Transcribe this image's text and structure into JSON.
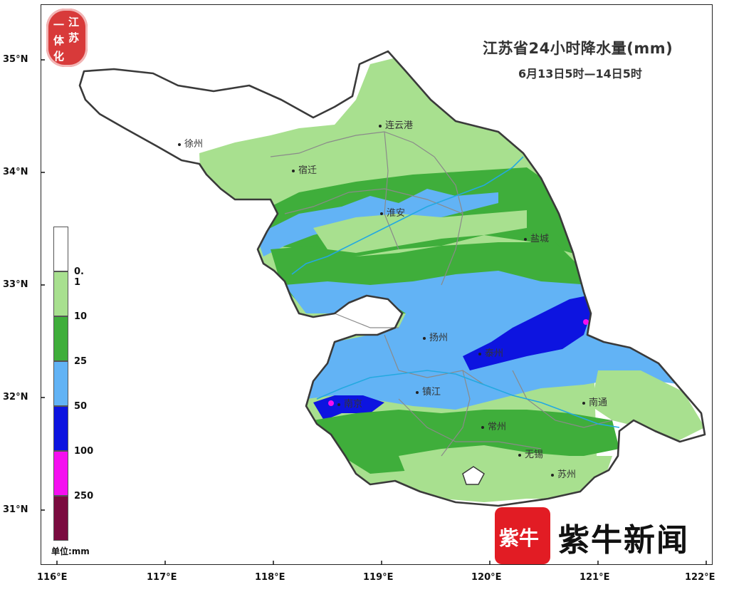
{
  "map": {
    "title": "江苏省24小时降水量(mm)",
    "subtitle": "6月13日5时—14日5时",
    "latitude_labels": [
      "35°N",
      "34°N",
      "33°N",
      "32°N",
      "31°N"
    ],
    "longitude_labels": [
      "116°E",
      "117°E",
      "118°E",
      "119°E",
      "120°E",
      "121°E",
      "122°E"
    ],
    "cities": [
      {
        "name": "徐州"
      },
      {
        "name": "连云港"
      },
      {
        "name": "宿迁"
      },
      {
        "name": "淮安"
      },
      {
        "name": "盐城"
      },
      {
        "name": "扬州"
      },
      {
        "name": "泰州"
      },
      {
        "name": "镇江"
      },
      {
        "name": "南京"
      },
      {
        "name": "南通"
      },
      {
        "name": "常州"
      },
      {
        "name": "无锡"
      },
      {
        "name": "苏州"
      }
    ]
  },
  "legend": {
    "unit": "单位:mm",
    "levels": [
      {
        "label": "",
        "color": "#ffffff"
      },
      {
        "label": "0. 1",
        "color": "#a8e08f"
      },
      {
        "label": "10",
        "color": "#3fae3b"
      },
      {
        "label": "25",
        "color": "#62b3f5"
      },
      {
        "label": "50",
        "color": "#0d14e0"
      },
      {
        "label": "100",
        "color": "#f50ff0"
      },
      {
        "label": "250",
        "color": "#7a0b3f"
      }
    ]
  },
  "badge": {
    "chars": [
      "江",
      "苏",
      "一",
      "体",
      "化"
    ]
  },
  "brand": {
    "box_text": "紫牛",
    "text": "紫牛新闻"
  },
  "colors": {
    "border": "#3a3a3a",
    "river": "#24a9e0",
    "city_boundary": "#8a8a8a"
  }
}
